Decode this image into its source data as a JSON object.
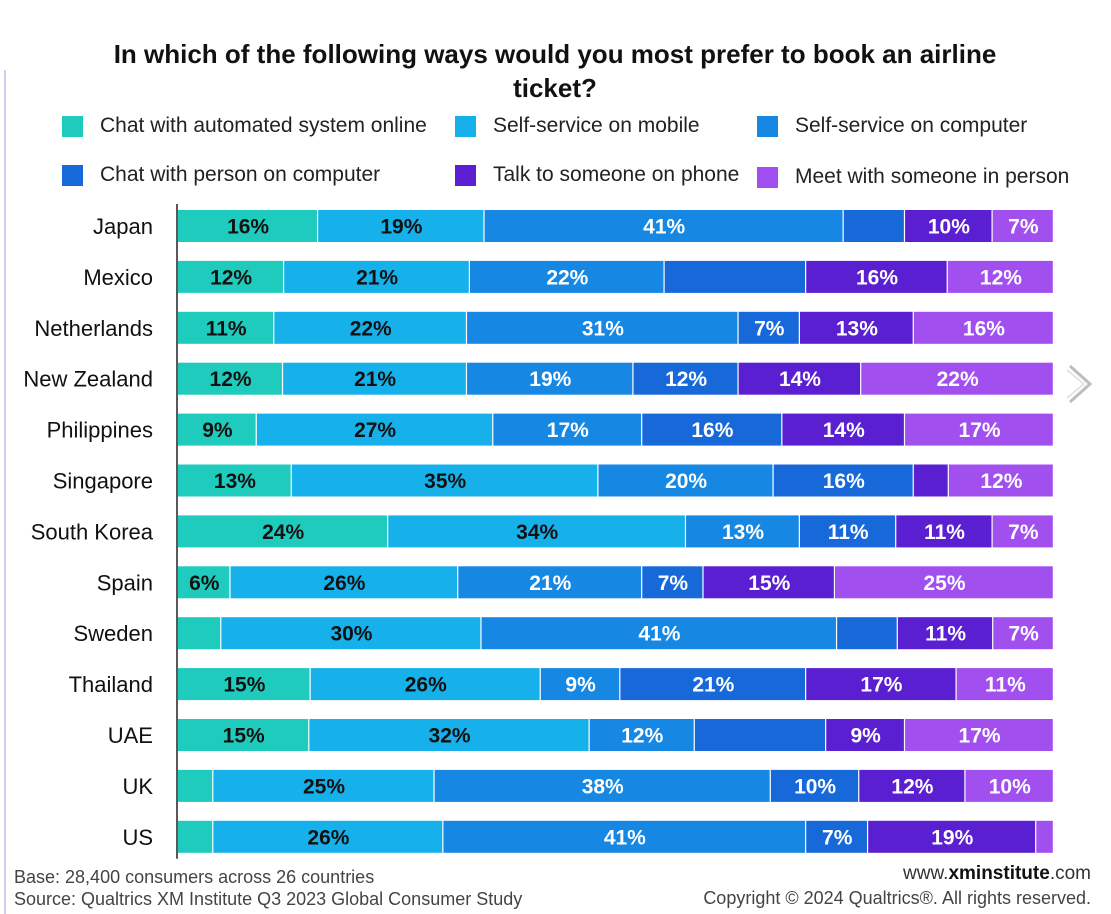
{
  "title": "In which of the following ways would you most prefer to book an airline ticket?",
  "legend": [
    {
      "label": "Chat with automated system online",
      "color": "#1fcbbd"
    },
    {
      "label": "Self-service on mobile",
      "color": "#16b1ea"
    },
    {
      "label": "Self-service on computer",
      "color": "#1687e3"
    },
    {
      "label": "Chat with person on computer",
      "color": "#1769d9"
    },
    {
      "label": "Talk to someone on phone",
      "color": "#5a1fd0"
    },
    {
      "label": "Meet with someone in person",
      "color": "#a24ff0"
    }
  ],
  "chart_data": {
    "type": "bar",
    "orientation": "horizontal",
    "stacked": true,
    "title": "In which of the following ways would you most prefer to book an airline ticket?",
    "categories": [
      "Japan",
      "Mexico",
      "Netherlands",
      "New Zealand",
      "Philippines",
      "Singapore",
      "South Korea",
      "Spain",
      "Sweden",
      "Thailand",
      "UAE",
      "UK",
      "US"
    ],
    "xlim": [
      0,
      100
    ],
    "unit": "%",
    "series": [
      {
        "name": "Chat with automated system online",
        "color": "#1fcbbd",
        "values": [
          16,
          12,
          11,
          12,
          9,
          13,
          24,
          6,
          5,
          15,
          15,
          4,
          4
        ],
        "labels": [
          "16%",
          "12%",
          "11%",
          "12%",
          "9%",
          "13%",
          "24%",
          "6%",
          "",
          "15%",
          "15%",
          "",
          ""
        ]
      },
      {
        "name": "Self-service on mobile",
        "color": "#16b1ea",
        "values": [
          19,
          21,
          22,
          21,
          27,
          35,
          34,
          26,
          30,
          26,
          32,
          25,
          26
        ],
        "labels": [
          "19%",
          "21%",
          "22%",
          "21%",
          "27%",
          "35%",
          "34%",
          "26%",
          "30%",
          "26%",
          "32%",
          "25%",
          "26%"
        ]
      },
      {
        "name": "Self-service on computer",
        "color": "#1687e3",
        "values": [
          41,
          22,
          31,
          19,
          17,
          20,
          13,
          21,
          41,
          9,
          12,
          38,
          41
        ],
        "labels": [
          "41%",
          "22%",
          "31%",
          "19%",
          "17%",
          "20%",
          "13%",
          "21%",
          "41%",
          "9%",
          "12%",
          "38%",
          "41%"
        ]
      },
      {
        "name": "Chat with person on computer",
        "color": "#1769d9",
        "values": [
          7,
          16,
          7,
          12,
          16,
          16,
          11,
          7,
          7,
          21,
          15,
          10,
          7
        ],
        "labels": [
          "",
          "",
          "7%",
          "12%",
          "16%",
          "16%",
          "11%",
          "7%",
          "",
          "21%",
          "",
          "10%",
          "7%"
        ]
      },
      {
        "name": "Talk to someone on phone",
        "color": "#5a1fd0",
        "values": [
          10,
          16,
          13,
          14,
          14,
          4,
          11,
          15,
          11,
          17,
          9,
          12,
          19
        ],
        "labels": [
          "10%",
          "16%",
          "13%",
          "14%",
          "14%",
          "",
          "11%",
          "15%",
          "11%",
          "17%",
          "9%",
          "12%",
          "19%"
        ]
      },
      {
        "name": "Meet with someone in person",
        "color": "#a24ff0",
        "values": [
          7,
          12,
          16,
          22,
          17,
          12,
          7,
          25,
          7,
          11,
          17,
          10,
          2
        ],
        "labels": [
          "7%",
          "12%",
          "16%",
          "22%",
          "17%",
          "12%",
          "7%",
          "25%",
          "7%",
          "11%",
          "17%",
          "10%",
          ""
        ]
      }
    ]
  },
  "footer": {
    "base": "Base: 28,400 consumers across 26 countries",
    "source": "Source: Qualtrics XM Institute Q3 2023 Global Consumer Study",
    "site_prefix": "www.",
    "site_bold": "xminstitute",
    "site_suffix": ".com",
    "copyright": "Copyright © 2024 Qualtrics®. All rights reserved."
  },
  "icons": {
    "next": "chevron-right-icon"
  }
}
